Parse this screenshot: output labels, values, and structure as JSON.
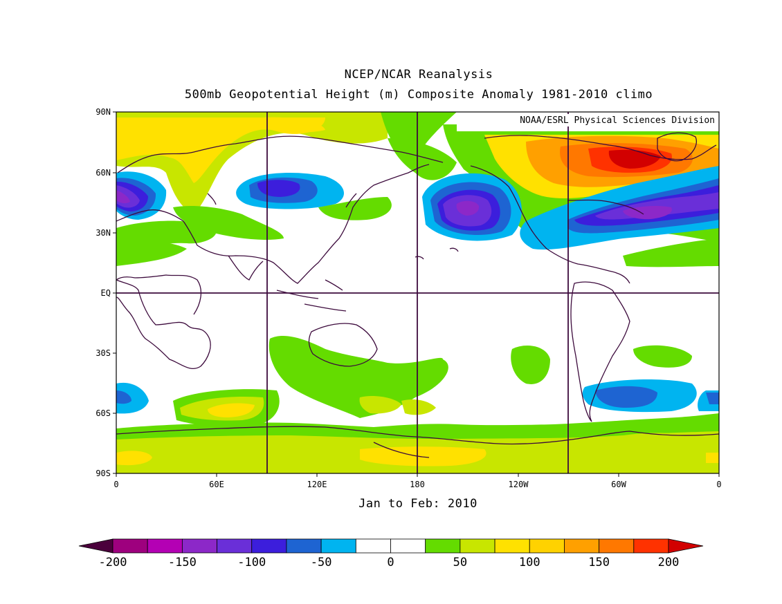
{
  "title_line1": "NCEP/NCAR Reanalysis",
  "title_line2": "500mb Geopotential Height (m) Composite Anomaly 1981-2010 climo",
  "credit": "NOAA/ESRL Physical Sciences Division",
  "period": "Jan to Feb: 2010",
  "lat_labels": [
    "90N",
    "60N",
    "30N",
    "EQ",
    "30S",
    "60S",
    "90S"
  ],
  "lon_labels": [
    "0",
    "60E",
    "120E",
    "180",
    "120W",
    "60W",
    "0"
  ],
  "colorbar": {
    "tick_labels": [
      "-200",
      "-150",
      "-100",
      "-50",
      "0",
      "50",
      "100",
      "150",
      "200"
    ],
    "colors": [
      "#9e007e",
      "#b400b4",
      "#8c28c8",
      "#6a2fd8",
      "#3c1edc",
      "#1e64d2",
      "#00b4f0",
      "#ffffff",
      "#ffffff",
      "#64dc00",
      "#c8e600",
      "#ffe100",
      "#ffd200",
      "#ffa000",
      "#ff7800",
      "#ff3200"
    ],
    "left_arrow_color": "#4b003c",
    "right_arrow_color": "#d20000"
  }
}
